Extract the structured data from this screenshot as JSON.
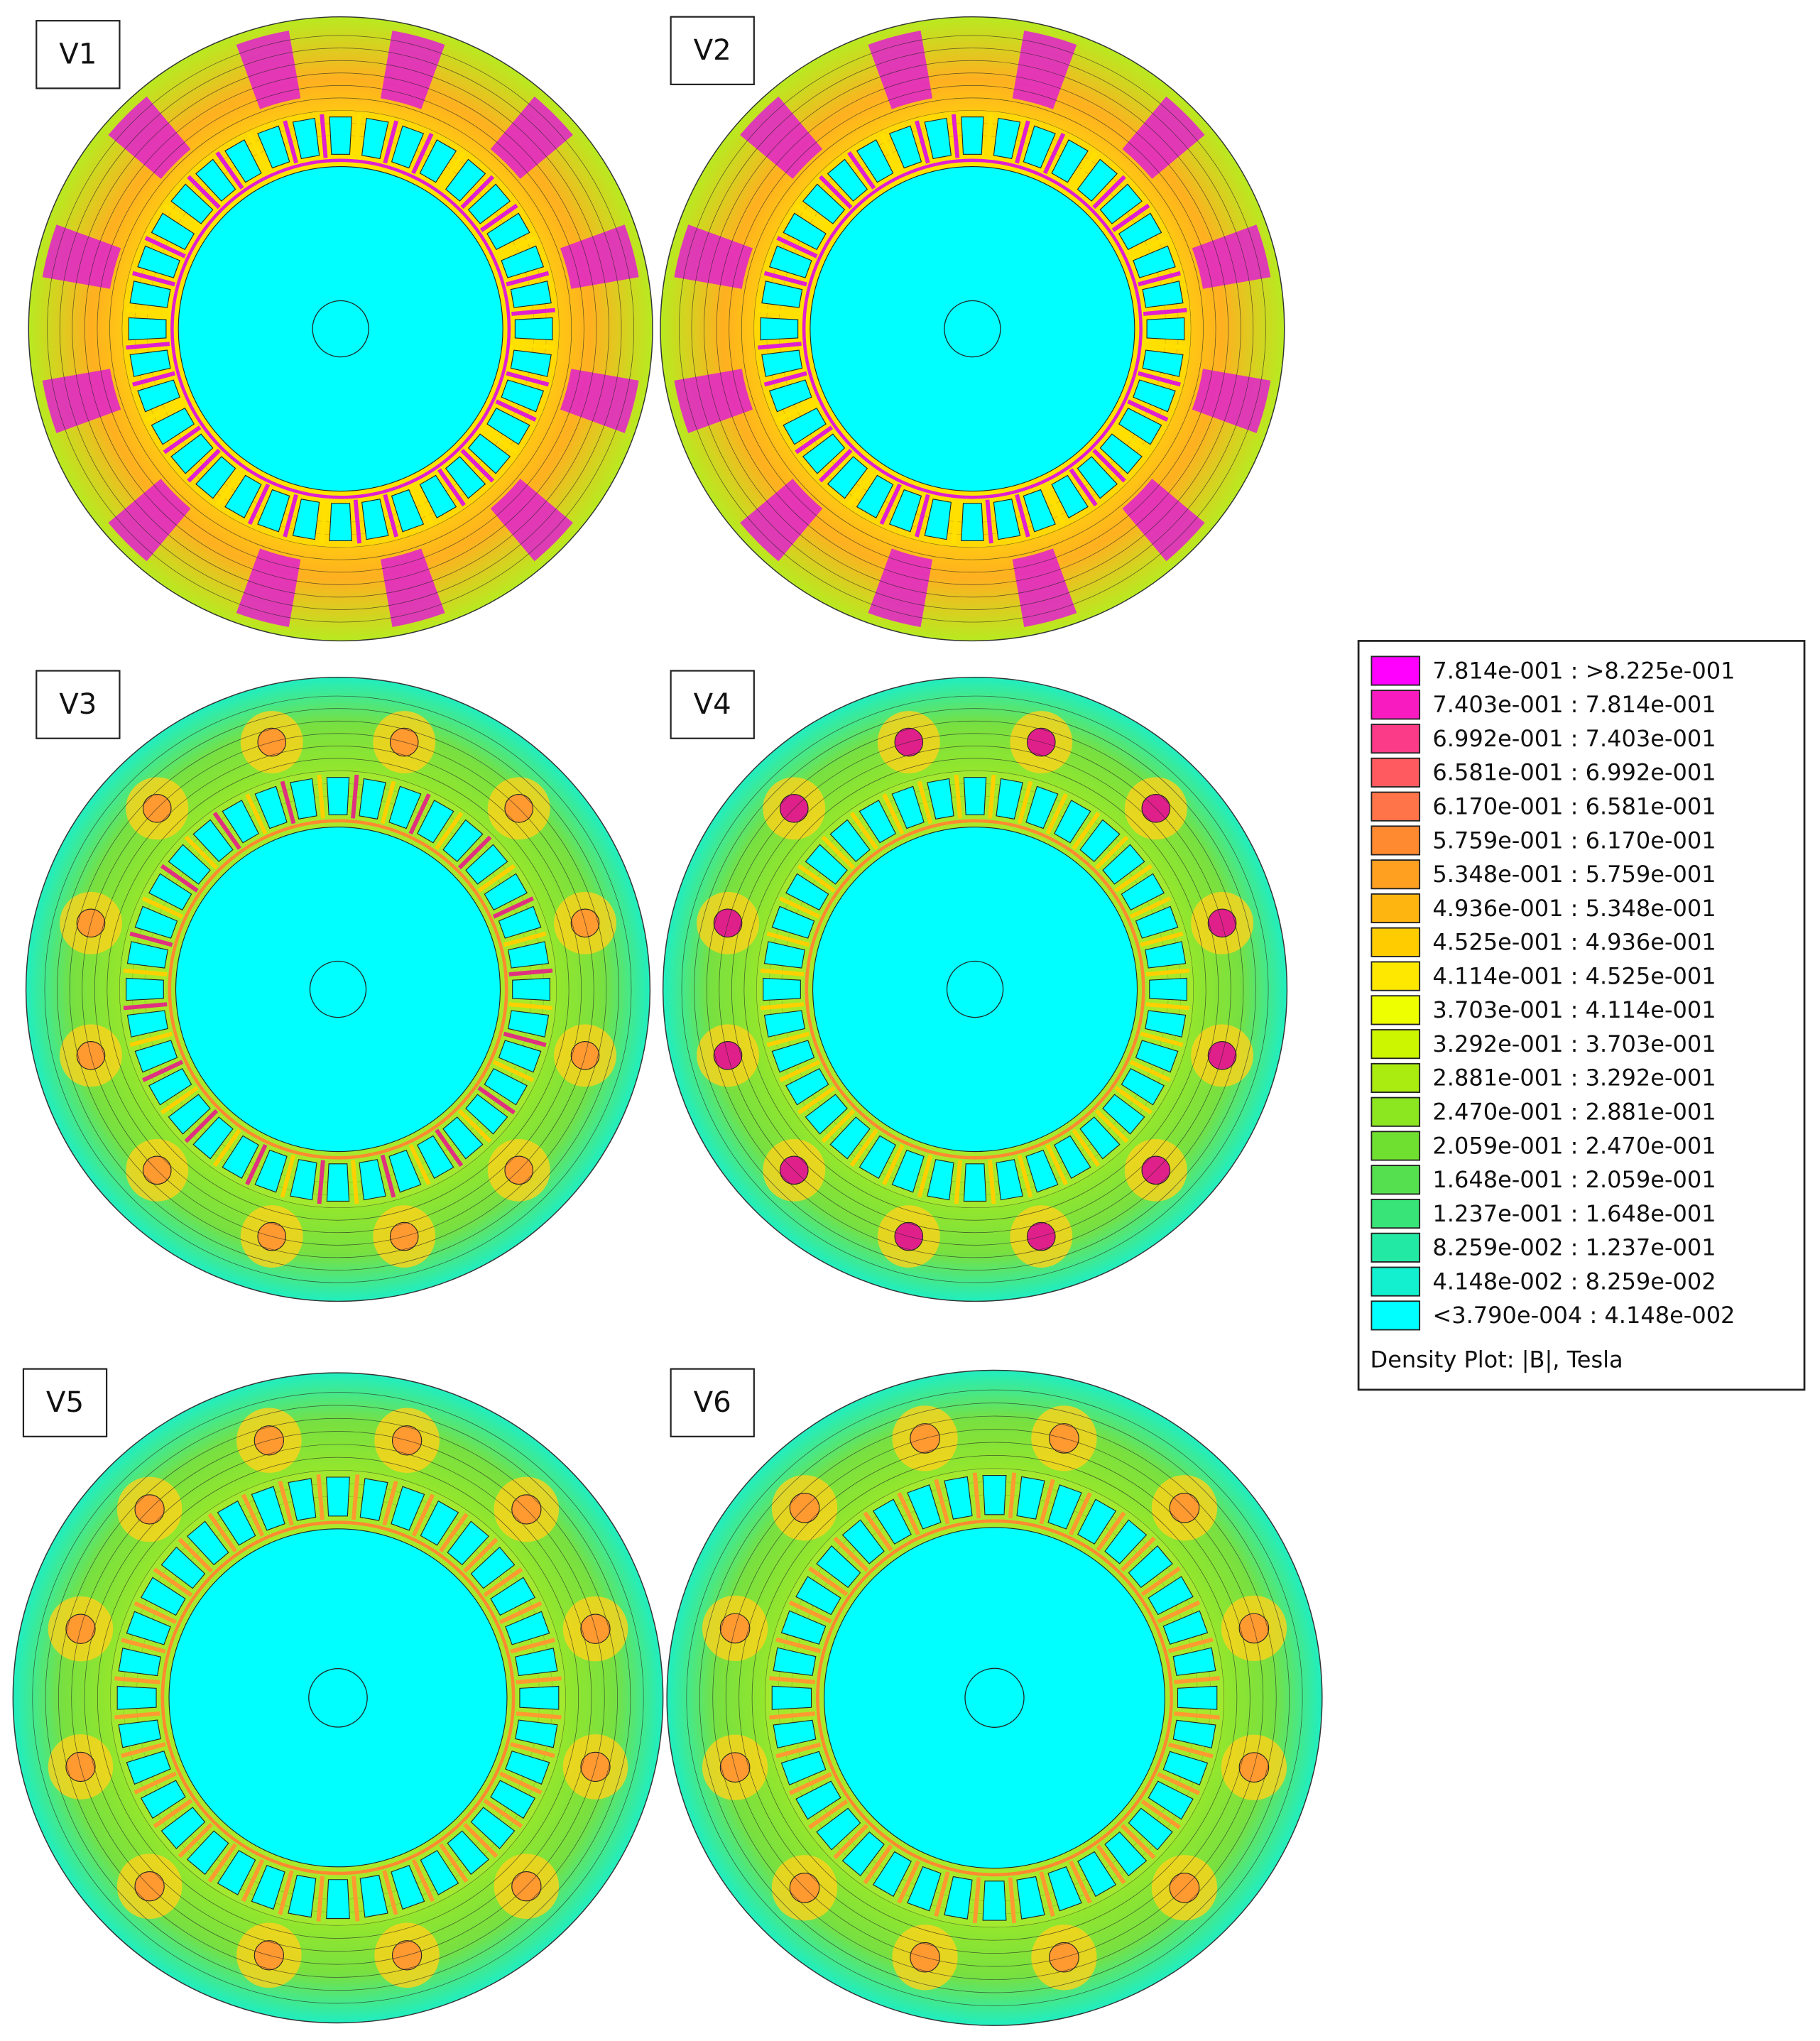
{
  "panels": [
    {
      "label": "V1"
    },
    {
      "label": "V2"
    },
    {
      "label": "V3"
    },
    {
      "label": "V4"
    },
    {
      "label": "V5"
    },
    {
      "label": "V6"
    }
  ],
  "legend": {
    "entries": [
      {
        "label": "7.814e-001 : >8.225e-001",
        "color": "#ff00ff"
      },
      {
        "label": "7.403e-001 : 7.814e-001",
        "color": "#f81cc0"
      },
      {
        "label": "6.992e-001 : 7.403e-001",
        "color": "#fb3a88"
      },
      {
        "label": "6.581e-001 : 6.992e-001",
        "color": "#ff5a60"
      },
      {
        "label": "6.170e-001 : 6.581e-001",
        "color": "#ff7448"
      },
      {
        "label": "5.759e-001 : 6.170e-001",
        "color": "#ff8a30"
      },
      {
        "label": "5.348e-001 : 5.759e-001",
        "color": "#ffa020"
      },
      {
        "label": "4.936e-001 : 5.348e-001",
        "color": "#ffb510"
      },
      {
        "label": "4.525e-001 : 4.936e-001",
        "color": "#ffcc00"
      },
      {
        "label": "4.114e-001 : 4.525e-001",
        "color": "#ffe800"
      },
      {
        "label": "3.703e-001 : 4.114e-001",
        "color": "#eeff00"
      },
      {
        "label": "3.292e-001 : 3.703e-001",
        "color": "#ccf500"
      },
      {
        "label": "2.881e-001 : 3.292e-001",
        "color": "#aaeb10"
      },
      {
        "label": "2.470e-001 : 2.881e-001",
        "color": "#8ce620"
      },
      {
        "label": "2.059e-001 : 2.470e-001",
        "color": "#70e030"
      },
      {
        "label": "1.648e-001 : 2.059e-001",
        "color": "#55e050"
      },
      {
        "label": "1.237e-001 : 1.648e-001",
        "color": "#38e478"
      },
      {
        "label": "8.259e-002 : 1.237e-001",
        "color": "#22eaa4"
      },
      {
        "label": "4.148e-002 : 8.259e-002",
        "color": "#12f0d0"
      },
      {
        "label": "<3.790e-004 : 4.148e-002",
        "color": "#00ffff"
      }
    ],
    "caption": "Density Plot: |B|, Tesla"
  }
}
